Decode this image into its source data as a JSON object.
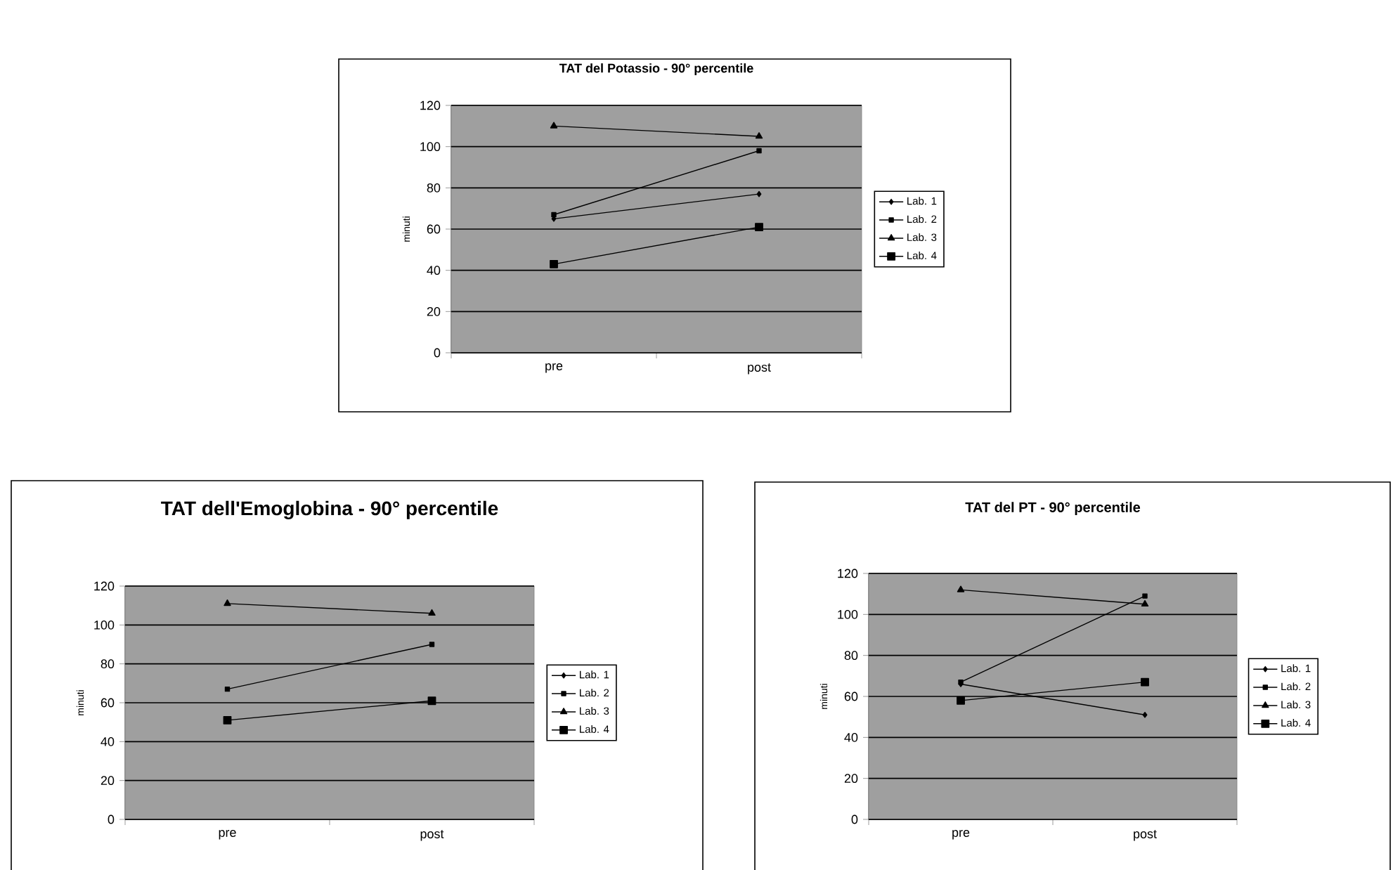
{
  "chart_data": [
    {
      "type": "line",
      "title": "TAT del Potassio - 90° percentile",
      "ylabel": "minuti",
      "categories": [
        "pre",
        "post"
      ],
      "ylim": [
        0,
        120
      ],
      "yticks": [
        0,
        20,
        40,
        60,
        80,
        100,
        120
      ],
      "grid": "y",
      "legend": "right",
      "series": [
        {
          "name": "Lab. 1",
          "color": "#000000",
          "marker": "diamond",
          "values": [
            65,
            77
          ]
        },
        {
          "name": "Lab. 2",
          "color": "#000000",
          "marker": "square",
          "values": [
            67,
            98
          ]
        },
        {
          "name": "Lab. 3",
          "color": "#000000",
          "marker": "triangle",
          "values": [
            110,
            105
          ]
        },
        {
          "name": "Lab. 4",
          "color": "#000000",
          "marker": "square",
          "values": [
            43,
            61
          ]
        }
      ]
    },
    {
      "type": "line",
      "title": "TAT dell'Emoglobina - 90° percentile",
      "ylabel": "minuti",
      "categories": [
        "pre",
        "post"
      ],
      "ylim": [
        0,
        120
      ],
      "yticks": [
        0,
        20,
        40,
        60,
        80,
        100,
        120
      ],
      "grid": "y",
      "legend": "right",
      "series": [
        {
          "name": "Lab. 1",
          "color": "#000000",
          "marker": "diamond",
          "values": [
            null,
            null
          ]
        },
        {
          "name": "Lab. 2",
          "color": "#000000",
          "marker": "square",
          "values": [
            67,
            90
          ]
        },
        {
          "name": "Lab. 3",
          "color": "#000000",
          "marker": "triangle",
          "values": [
            111,
            106
          ]
        },
        {
          "name": "Lab. 4",
          "color": "#000000",
          "marker": "square",
          "values": [
            51,
            61
          ]
        }
      ]
    },
    {
      "type": "line",
      "title": "TAT del PT - 90° percentile",
      "ylabel": "minuti",
      "categories": [
        "pre",
        "post"
      ],
      "ylim": [
        0,
        120
      ],
      "yticks": [
        0,
        20,
        40,
        60,
        80,
        100,
        120
      ],
      "grid": "y",
      "legend": "right",
      "series": [
        {
          "name": "Lab. 1",
          "color": "#000000",
          "marker": "diamond",
          "values": [
            66,
            51
          ]
        },
        {
          "name": "Lab. 2",
          "color": "#000000",
          "marker": "square",
          "values": [
            67,
            109
          ]
        },
        {
          "name": "Lab. 3",
          "color": "#000000",
          "marker": "triangle",
          "values": [
            112,
            105
          ]
        },
        {
          "name": "Lab. 4",
          "color": "#000000",
          "marker": "square",
          "values": [
            58,
            67
          ]
        }
      ]
    }
  ]
}
